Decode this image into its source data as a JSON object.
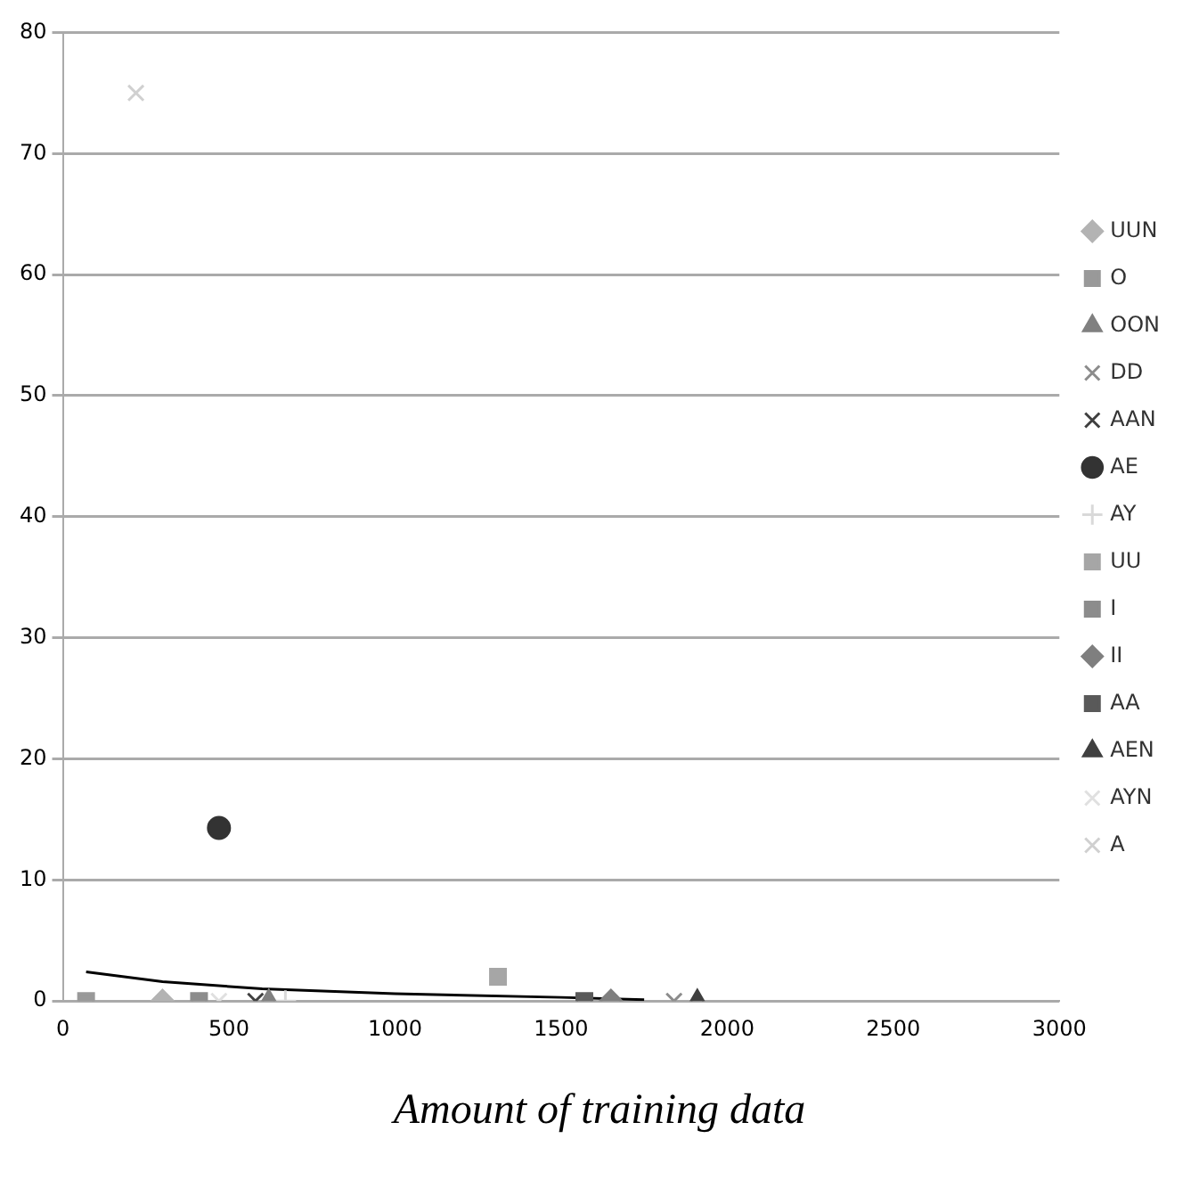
{
  "chart_data": {
    "type": "scatter",
    "xlabel": "Amount of training data",
    "xlim": [
      0,
      3000
    ],
    "xticks": [
      0,
      500,
      1000,
      1500,
      2000,
      2500,
      3000
    ],
    "ylim": [
      0,
      80
    ],
    "yticks": [
      0,
      10,
      20,
      30,
      40,
      50,
      60,
      70,
      80
    ],
    "grid": "y",
    "legend": "right",
    "series": [
      {
        "name": "UUN",
        "color": "#b3b3b3",
        "marker": "diamond",
        "x": [
          300
        ],
        "values": [
          0
        ]
      },
      {
        "name": "O",
        "color": "#999999",
        "marker": "square",
        "x": [
          70
        ],
        "values": [
          0
        ]
      },
      {
        "name": "OON",
        "color": "#808080",
        "marker": "triangle",
        "x": [
          620
        ],
        "values": [
          0
        ]
      },
      {
        "name": "DD",
        "color": "#8c8c8c",
        "marker": "cross",
        "x": [
          1840
        ],
        "values": [
          0
        ]
      },
      {
        "name": "AAN",
        "color": "#404040",
        "marker": "cross",
        "x": [
          580
        ],
        "values": [
          0
        ]
      },
      {
        "name": "AE",
        "color": "#333333",
        "marker": "circle",
        "x": [
          470
        ],
        "values": [
          14.3
        ]
      },
      {
        "name": "AY",
        "color": "#d9d9d9",
        "marker": "plus",
        "x": [
          670
        ],
        "values": [
          0
        ]
      },
      {
        "name": "UU",
        "color": "#a6a6a6",
        "marker": "square",
        "x": [
          1310
        ],
        "values": [
          2
        ]
      },
      {
        "name": "I",
        "color": "#8c8c8c",
        "marker": "square",
        "x": [
          410
        ],
        "values": [
          0
        ]
      },
      {
        "name": "II",
        "color": "#7f7f7f",
        "marker": "diamond",
        "x": [
          1650
        ],
        "values": [
          0
        ]
      },
      {
        "name": "AA",
        "color": "#595959",
        "marker": "square",
        "x": [
          1570
        ],
        "values": [
          0
        ]
      },
      {
        "name": "AEN",
        "color": "#404040",
        "marker": "triangle",
        "x": [
          1910
        ],
        "values": [
          0
        ]
      },
      {
        "name": "AYN",
        "color": "#e0e0e0",
        "marker": "cross",
        "x": [
          470
        ],
        "values": [
          0
        ]
      },
      {
        "name": "A",
        "color": "#d0d0d0",
        "marker": "cross",
        "x": [
          220
        ],
        "values": [
          75
        ]
      },
      {
        "type": "line",
        "color": "#000000",
        "marker": "none",
        "x": [
          70,
          300,
          600,
          1000,
          1500,
          1750
        ],
        "values": [
          2.4,
          1.6,
          1.0,
          0.6,
          0.3,
          0.1
        ]
      }
    ]
  }
}
